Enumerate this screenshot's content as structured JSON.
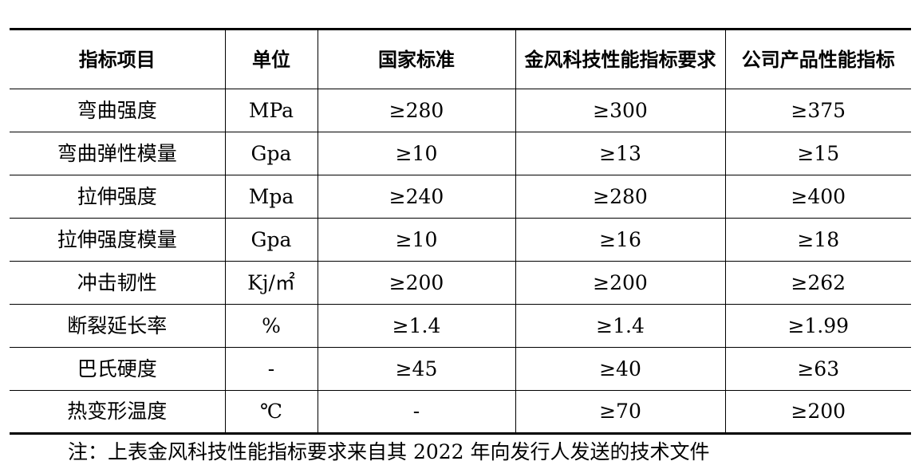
{
  "table": {
    "headers": [
      "指标项目",
      "单位",
      "国家标准",
      "金风科技性能指标要求",
      "公司产品性能指标"
    ],
    "rows": [
      [
        "弯曲强度",
        "MPa",
        "≥280",
        "≥300",
        "≥375"
      ],
      [
        "弯曲弹性模量",
        "Gpa",
        "≥10",
        "≥13",
        "≥15"
      ],
      [
        "拉伸强度",
        "Mpa",
        "≥240",
        "≥280",
        "≥400"
      ],
      [
        "拉伸强度模量",
        "Gpa",
        "≥10",
        "≥16",
        "≥18"
      ],
      [
        "冲击韧性",
        "Kj/㎡",
        "≥200",
        "≥200",
        "≥262"
      ],
      [
        "断裂延长率",
        "%",
        "≥1.4",
        "≥1.4",
        "≥1.99"
      ],
      [
        "巴氏硬度",
        "-",
        "≥45",
        "≥40",
        "≥63"
      ],
      [
        "热变形温度",
        "℃",
        "-",
        "≥70",
        "≥200"
      ]
    ]
  },
  "note": "注：上表金风科技性能指标要求来自其 2022 年向发行人发送的技术文件"
}
